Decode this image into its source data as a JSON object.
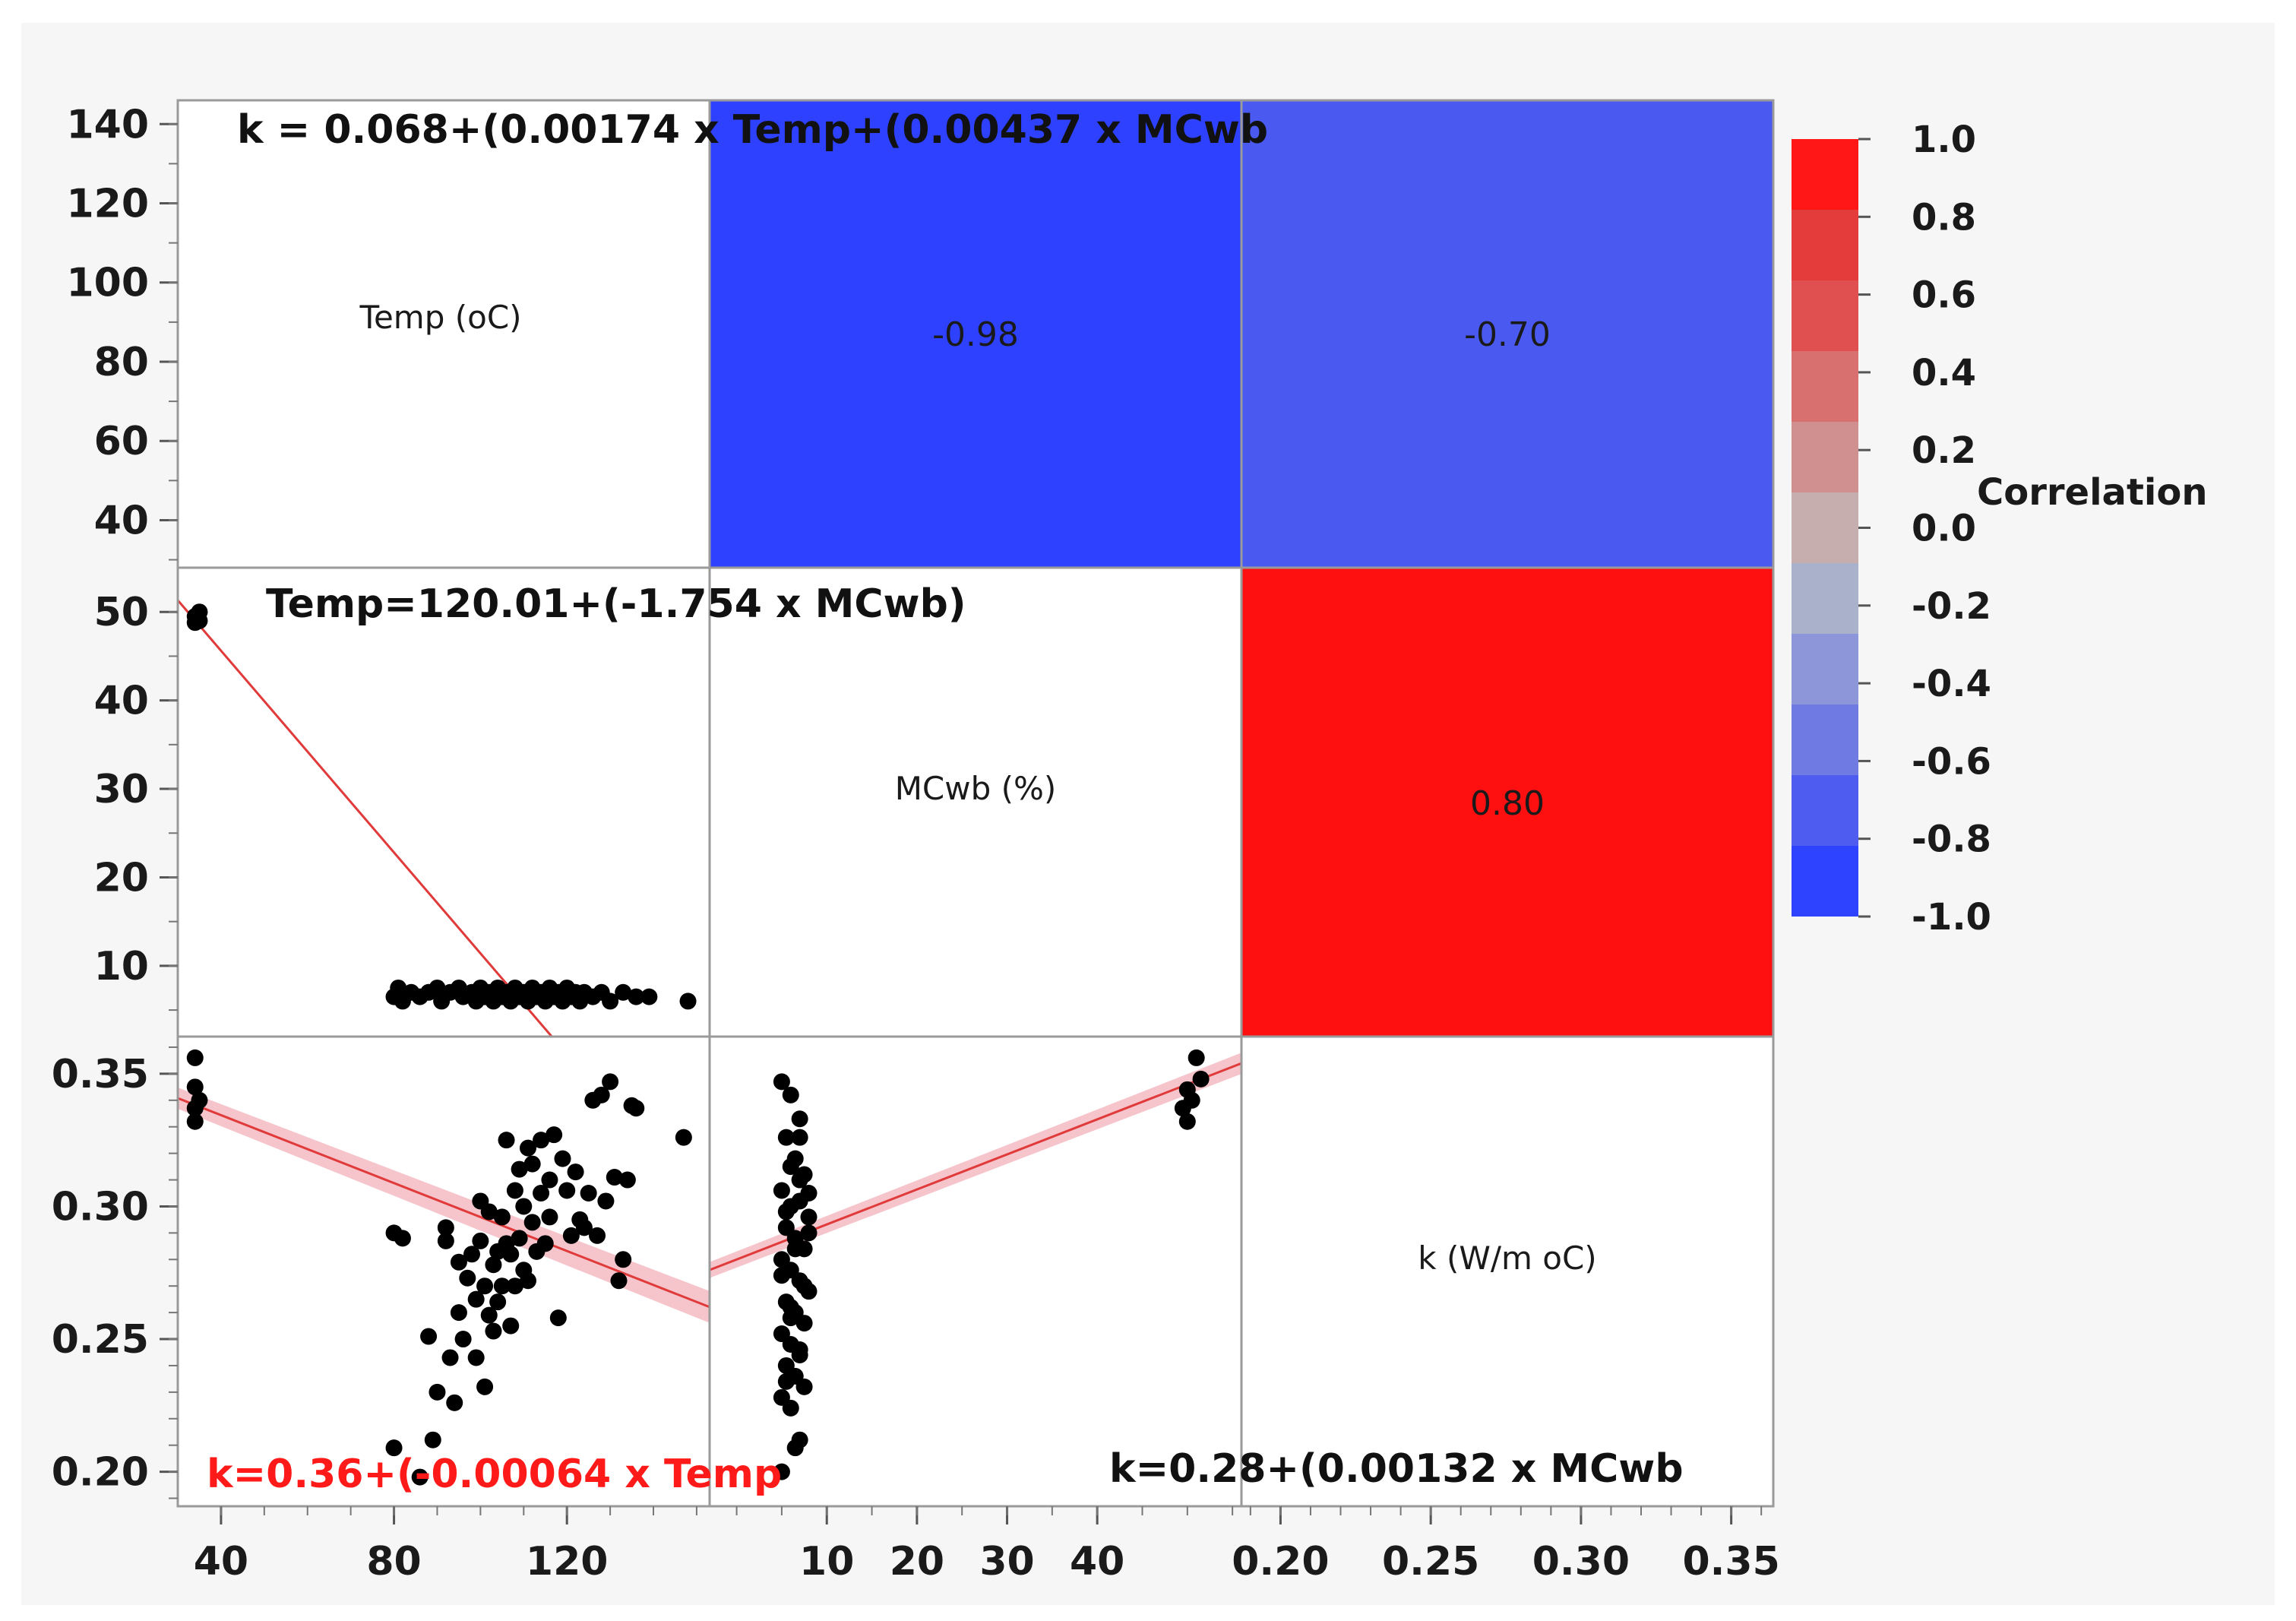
{
  "chart_data": {
    "type": "scatter-matrix",
    "variables": [
      "Temp (oC)",
      "MCwb (%)",
      "k (W/m oC)"
    ],
    "correlations": [
      {
        "row": 0,
        "col": 1,
        "value": -0.98,
        "label": "-0.98",
        "color": "#2d41ff"
      },
      {
        "row": 0,
        "col": 2,
        "value": -0.7,
        "label": "-0.70",
        "color": "#4a5af0"
      },
      {
        "row": 1,
        "col": 2,
        "value": 0.8,
        "label": "0.80",
        "color": "#ff1010"
      }
    ],
    "axes": {
      "temp": {
        "range": [
          30,
          153
        ],
        "ticks": [
          40,
          80,
          120
        ],
        "tick_labels": [
          "40",
          "80",
          "120"
        ]
      },
      "temp_y": {
        "range": [
          28,
          146
        ],
        "ticks": [
          40,
          60,
          80,
          100,
          120,
          140
        ],
        "tick_labels": [
          "40",
          "60",
          "80",
          "100",
          "120",
          "140"
        ]
      },
      "mc": {
        "range": [
          -3,
          56
        ],
        "ticks": [
          10,
          20,
          30,
          40
        ],
        "tick_labels": [
          "10",
          "20",
          "30",
          "40"
        ]
      },
      "mc_y": {
        "range": [
          2,
          55
        ],
        "ticks": [
          10,
          20,
          30,
          40,
          50
        ],
        "tick_labels": [
          "10",
          "20",
          "30",
          "40",
          "50"
        ]
      },
      "k": {
        "range": [
          0.187,
          0.364
        ],
        "ticks": [
          0.2,
          0.25,
          0.3,
          0.35
        ],
        "tick_labels": [
          "0.20",
          "0.25",
          "0.30",
          "0.35"
        ]
      }
    },
    "equations": {
      "k_temp_mc": "k = 0.068+(0.00174 x Temp+(0.00437 x MCwb",
      "temp_mc": "Temp=120.01+(-1.754 x MCwb)",
      "k_temp": "k=0.36+(-0.00064 x Temp",
      "k_mc": "k=0.28+(0.00132 x MCwb"
    },
    "fits": {
      "temp_vs_mc": {
        "intercept": 120.01,
        "slope": -1.754
      },
      "k_vs_temp": {
        "intercept": 0.36,
        "slope": -0.00064
      },
      "k_vs_mc": {
        "intercept": 0.28,
        "slope": 0.00132
      }
    },
    "scatter_temp_mc": [
      [
        34,
        49.5
      ],
      [
        35,
        49
      ],
      [
        35,
        50
      ],
      [
        34,
        48.8
      ],
      [
        80,
        6.5
      ],
      [
        81,
        7.5
      ],
      [
        82,
        6
      ],
      [
        84,
        7
      ],
      [
        86,
        6.5
      ],
      [
        88,
        7
      ],
      [
        90,
        7.5
      ],
      [
        91,
        6
      ],
      [
        93,
        7
      ],
      [
        95,
        7.5
      ],
      [
        96,
        6.5
      ],
      [
        98,
        7
      ],
      [
        99,
        6
      ],
      [
        100,
        7.5
      ],
      [
        101,
        6.5
      ],
      [
        102,
        7
      ],
      [
        103,
        6
      ],
      [
        104,
        7.5
      ],
      [
        105,
        6.5
      ],
      [
        106,
        7
      ],
      [
        107,
        6
      ],
      [
        108,
        7.5
      ],
      [
        109,
        6.5
      ],
      [
        110,
        7
      ],
      [
        111,
        6
      ],
      [
        112,
        7.5
      ],
      [
        113,
        6.5
      ],
      [
        114,
        7
      ],
      [
        115,
        6
      ],
      [
        116,
        7.5
      ],
      [
        117,
        6.5
      ],
      [
        118,
        7
      ],
      [
        119,
        6
      ],
      [
        120,
        7.5
      ],
      [
        121,
        6.5
      ],
      [
        122,
        7
      ],
      [
        123,
        6
      ],
      [
        124,
        7
      ],
      [
        126,
        6.5
      ],
      [
        128,
        7
      ],
      [
        130,
        6
      ],
      [
        133,
        7
      ],
      [
        136,
        6.5
      ],
      [
        139,
        6.5
      ],
      [
        148,
        6
      ]
    ],
    "scatter_k_temp": [
      [
        34,
        0.356
      ],
      [
        34,
        0.345
      ],
      [
        35,
        0.34
      ],
      [
        34,
        0.337
      ],
      [
        34,
        0.332
      ],
      [
        80,
        0.209
      ],
      [
        80,
        0.29
      ],
      [
        82,
        0.288
      ],
      [
        86,
        0.198
      ],
      [
        88,
        0.251
      ],
      [
        89,
        0.212
      ],
      [
        90,
        0.23
      ],
      [
        92,
        0.292
      ],
      [
        92,
        0.287
      ],
      [
        93,
        0.243
      ],
      [
        94,
        0.226
      ],
      [
        95,
        0.279
      ],
      [
        95,
        0.26
      ],
      [
        96,
        0.25
      ],
      [
        97,
        0.273
      ],
      [
        98,
        0.282
      ],
      [
        99,
        0.243
      ],
      [
        99,
        0.265
      ],
      [
        100,
        0.287
      ],
      [
        100,
        0.302
      ],
      [
        101,
        0.232
      ],
      [
        101,
        0.27
      ],
      [
        102,
        0.259
      ],
      [
        102,
        0.298
      ],
      [
        103,
        0.278
      ],
      [
        103,
        0.253
      ],
      [
        104,
        0.283
      ],
      [
        104,
        0.264
      ],
      [
        105,
        0.296
      ],
      [
        105,
        0.27
      ],
      [
        106,
        0.325
      ],
      [
        106,
        0.286
      ],
      [
        107,
        0.255
      ],
      [
        107,
        0.282
      ],
      [
        108,
        0.27
      ],
      [
        108,
        0.306
      ],
      [
        109,
        0.314
      ],
      [
        109,
        0.288
      ],
      [
        110,
        0.276
      ],
      [
        110,
        0.3
      ],
      [
        111,
        0.322
      ],
      [
        111,
        0.272
      ],
      [
        112,
        0.316
      ],
      [
        112,
        0.294
      ],
      [
        113,
        0.283
      ],
      [
        114,
        0.325
      ],
      [
        114,
        0.305
      ],
      [
        115,
        0.286
      ],
      [
        116,
        0.31
      ],
      [
        116,
        0.296
      ],
      [
        117,
        0.327
      ],
      [
        118,
        0.258
      ],
      [
        119,
        0.318
      ],
      [
        120,
        0.306
      ],
      [
        121,
        0.289
      ],
      [
        122,
        0.313
      ],
      [
        123,
        0.295
      ],
      [
        124,
        0.292
      ],
      [
        125,
        0.305
      ],
      [
        126,
        0.34
      ],
      [
        127,
        0.289
      ],
      [
        128,
        0.342
      ],
      [
        129,
        0.302
      ],
      [
        130,
        0.347
      ],
      [
        131,
        0.311
      ],
      [
        132,
        0.272
      ],
      [
        133,
        0.28
      ],
      [
        134,
        0.31
      ],
      [
        135,
        0.338
      ],
      [
        136,
        0.337
      ],
      [
        147,
        0.326
      ]
    ],
    "scatter_k_mc": [
      [
        50,
        0.344
      ],
      [
        50.5,
        0.34
      ],
      [
        51,
        0.356
      ],
      [
        51.5,
        0.348
      ],
      [
        50,
        0.332
      ],
      [
        49.5,
        0.337
      ],
      [
        5,
        0.347
      ],
      [
        6,
        0.342
      ],
      [
        7,
        0.333
      ],
      [
        5.5,
        0.326
      ],
      [
        6.5,
        0.318
      ],
      [
        7.5,
        0.312
      ],
      [
        5,
        0.306
      ],
      [
        6,
        0.3
      ],
      [
        7,
        0.31
      ],
      [
        8,
        0.296
      ],
      [
        5.5,
        0.292
      ],
      [
        6.5,
        0.288
      ],
      [
        7.5,
        0.284
      ],
      [
        5,
        0.28
      ],
      [
        6,
        0.276
      ],
      [
        7,
        0.272
      ],
      [
        8,
        0.268
      ],
      [
        5.5,
        0.264
      ],
      [
        6.5,
        0.26
      ],
      [
        7.5,
        0.256
      ],
      [
        5,
        0.252
      ],
      [
        6,
        0.248
      ],
      [
        7,
        0.244
      ],
      [
        5.5,
        0.24
      ],
      [
        6.5,
        0.236
      ],
      [
        7.5,
        0.232
      ],
      [
        5,
        0.228
      ],
      [
        6,
        0.224
      ],
      [
        7,
        0.212
      ],
      [
        6.5,
        0.209
      ],
      [
        5,
        0.2
      ],
      [
        6,
        0.315
      ],
      [
        7,
        0.302
      ],
      [
        8,
        0.29
      ],
      [
        5,
        0.274
      ],
      [
        6,
        0.262
      ],
      [
        7,
        0.326
      ],
      [
        8,
        0.305
      ],
      [
        5.5,
        0.298
      ],
      [
        6.5,
        0.284
      ],
      [
        7.5,
        0.27
      ],
      [
        6,
        0.258
      ],
      [
        7,
        0.246
      ],
      [
        5.5,
        0.234
      ]
    ],
    "legend": {
      "title": "Correlation",
      "ticks": [
        1.0,
        0.8,
        0.6,
        0.4,
        0.2,
        0.0,
        -0.2,
        -0.4,
        -0.6,
        -0.8,
        -1.0
      ],
      "tick_labels": [
        "1.0",
        "0.8",
        "0.6",
        "0.4",
        "0.2",
        "0.0",
        "-0.2",
        "-0.4",
        "-0.6",
        "-0.8",
        "-1.0"
      ],
      "colors": [
        "#ff1616",
        "#e43b3b",
        "#e05050",
        "#d87070",
        "#d09090",
        "#c6aeae",
        "#aab2cb",
        "#8c96d8",
        "#6f7ae3",
        "#4e5cef",
        "#2d43ff"
      ]
    },
    "colors": {
      "fit_line": "#e03a3a",
      "fit_band": "#f4b6bf",
      "points": "#000000"
    }
  }
}
